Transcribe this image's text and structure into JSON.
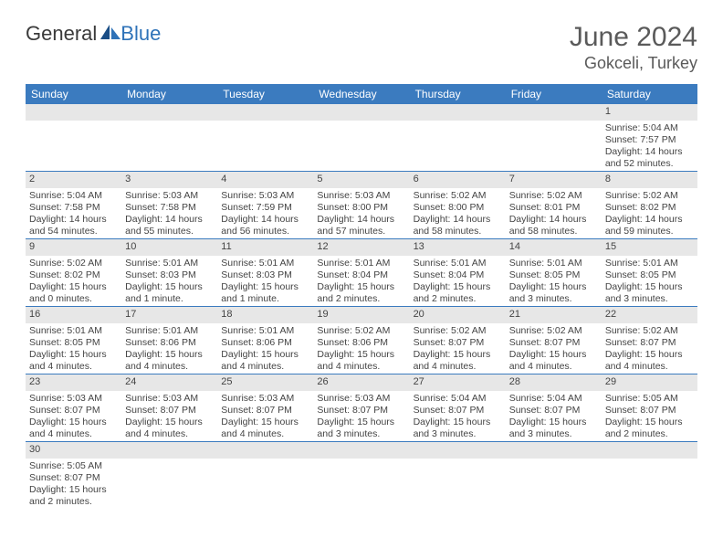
{
  "logo": {
    "text1": "General",
    "text2": "Blue"
  },
  "title": "June 2024",
  "location": "Gokceli, Turkey",
  "colors": {
    "header_bg": "#3b7bbf",
    "header_fg": "#ffffff",
    "row_divider": "#3b7bbf",
    "daynum_bg": "#e7e7e7",
    "text": "#444444",
    "logo_blue": "#2e72b8",
    "title_color": "#5a5a5a"
  },
  "weekdays": [
    "Sunday",
    "Monday",
    "Tuesday",
    "Wednesday",
    "Thursday",
    "Friday",
    "Saturday"
  ],
  "weeks": [
    [
      null,
      null,
      null,
      null,
      null,
      null,
      {
        "n": "1",
        "sr": "Sunrise: 5:04 AM",
        "ss": "Sunset: 7:57 PM",
        "dl": "Daylight: 14 hours and 52 minutes."
      }
    ],
    [
      {
        "n": "2",
        "sr": "Sunrise: 5:04 AM",
        "ss": "Sunset: 7:58 PM",
        "dl": "Daylight: 14 hours and 54 minutes."
      },
      {
        "n": "3",
        "sr": "Sunrise: 5:03 AM",
        "ss": "Sunset: 7:58 PM",
        "dl": "Daylight: 14 hours and 55 minutes."
      },
      {
        "n": "4",
        "sr": "Sunrise: 5:03 AM",
        "ss": "Sunset: 7:59 PM",
        "dl": "Daylight: 14 hours and 56 minutes."
      },
      {
        "n": "5",
        "sr": "Sunrise: 5:03 AM",
        "ss": "Sunset: 8:00 PM",
        "dl": "Daylight: 14 hours and 57 minutes."
      },
      {
        "n": "6",
        "sr": "Sunrise: 5:02 AM",
        "ss": "Sunset: 8:00 PM",
        "dl": "Daylight: 14 hours and 58 minutes."
      },
      {
        "n": "7",
        "sr": "Sunrise: 5:02 AM",
        "ss": "Sunset: 8:01 PM",
        "dl": "Daylight: 14 hours and 58 minutes."
      },
      {
        "n": "8",
        "sr": "Sunrise: 5:02 AM",
        "ss": "Sunset: 8:02 PM",
        "dl": "Daylight: 14 hours and 59 minutes."
      }
    ],
    [
      {
        "n": "9",
        "sr": "Sunrise: 5:02 AM",
        "ss": "Sunset: 8:02 PM",
        "dl": "Daylight: 15 hours and 0 minutes."
      },
      {
        "n": "10",
        "sr": "Sunrise: 5:01 AM",
        "ss": "Sunset: 8:03 PM",
        "dl": "Daylight: 15 hours and 1 minute."
      },
      {
        "n": "11",
        "sr": "Sunrise: 5:01 AM",
        "ss": "Sunset: 8:03 PM",
        "dl": "Daylight: 15 hours and 1 minute."
      },
      {
        "n": "12",
        "sr": "Sunrise: 5:01 AM",
        "ss": "Sunset: 8:04 PM",
        "dl": "Daylight: 15 hours and 2 minutes."
      },
      {
        "n": "13",
        "sr": "Sunrise: 5:01 AM",
        "ss": "Sunset: 8:04 PM",
        "dl": "Daylight: 15 hours and 2 minutes."
      },
      {
        "n": "14",
        "sr": "Sunrise: 5:01 AM",
        "ss": "Sunset: 8:05 PM",
        "dl": "Daylight: 15 hours and 3 minutes."
      },
      {
        "n": "15",
        "sr": "Sunrise: 5:01 AM",
        "ss": "Sunset: 8:05 PM",
        "dl": "Daylight: 15 hours and 3 minutes."
      }
    ],
    [
      {
        "n": "16",
        "sr": "Sunrise: 5:01 AM",
        "ss": "Sunset: 8:05 PM",
        "dl": "Daylight: 15 hours and 4 minutes."
      },
      {
        "n": "17",
        "sr": "Sunrise: 5:01 AM",
        "ss": "Sunset: 8:06 PM",
        "dl": "Daylight: 15 hours and 4 minutes."
      },
      {
        "n": "18",
        "sr": "Sunrise: 5:01 AM",
        "ss": "Sunset: 8:06 PM",
        "dl": "Daylight: 15 hours and 4 minutes."
      },
      {
        "n": "19",
        "sr": "Sunrise: 5:02 AM",
        "ss": "Sunset: 8:06 PM",
        "dl": "Daylight: 15 hours and 4 minutes."
      },
      {
        "n": "20",
        "sr": "Sunrise: 5:02 AM",
        "ss": "Sunset: 8:07 PM",
        "dl": "Daylight: 15 hours and 4 minutes."
      },
      {
        "n": "21",
        "sr": "Sunrise: 5:02 AM",
        "ss": "Sunset: 8:07 PM",
        "dl": "Daylight: 15 hours and 4 minutes."
      },
      {
        "n": "22",
        "sr": "Sunrise: 5:02 AM",
        "ss": "Sunset: 8:07 PM",
        "dl": "Daylight: 15 hours and 4 minutes."
      }
    ],
    [
      {
        "n": "23",
        "sr": "Sunrise: 5:03 AM",
        "ss": "Sunset: 8:07 PM",
        "dl": "Daylight: 15 hours and 4 minutes."
      },
      {
        "n": "24",
        "sr": "Sunrise: 5:03 AM",
        "ss": "Sunset: 8:07 PM",
        "dl": "Daylight: 15 hours and 4 minutes."
      },
      {
        "n": "25",
        "sr": "Sunrise: 5:03 AM",
        "ss": "Sunset: 8:07 PM",
        "dl": "Daylight: 15 hours and 4 minutes."
      },
      {
        "n": "26",
        "sr": "Sunrise: 5:03 AM",
        "ss": "Sunset: 8:07 PM",
        "dl": "Daylight: 15 hours and 3 minutes."
      },
      {
        "n": "27",
        "sr": "Sunrise: 5:04 AM",
        "ss": "Sunset: 8:07 PM",
        "dl": "Daylight: 15 hours and 3 minutes."
      },
      {
        "n": "28",
        "sr": "Sunrise: 5:04 AM",
        "ss": "Sunset: 8:07 PM",
        "dl": "Daylight: 15 hours and 3 minutes."
      },
      {
        "n": "29",
        "sr": "Sunrise: 5:05 AM",
        "ss": "Sunset: 8:07 PM",
        "dl": "Daylight: 15 hours and 2 minutes."
      }
    ],
    [
      {
        "n": "30",
        "sr": "Sunrise: 5:05 AM",
        "ss": "Sunset: 8:07 PM",
        "dl": "Daylight: 15 hours and 2 minutes."
      },
      null,
      null,
      null,
      null,
      null,
      null
    ]
  ]
}
